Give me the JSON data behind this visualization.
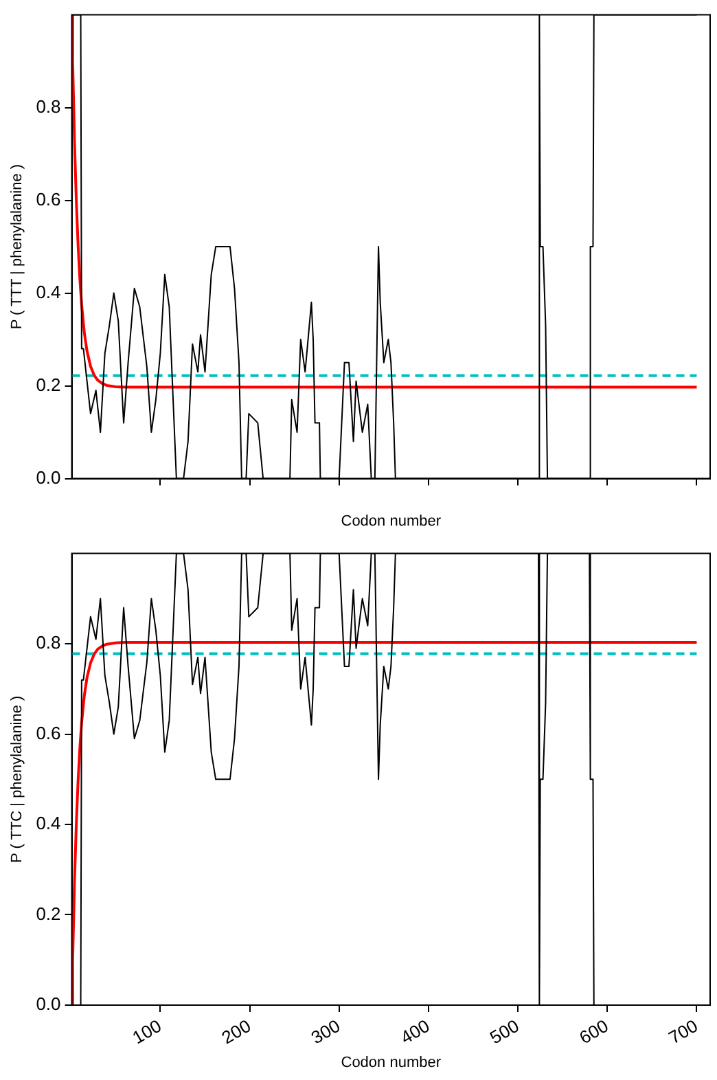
{
  "chart_data": [
    {
      "type": "line",
      "xlabel": "Codon number",
      "ylabel": "P ( TTT | phenylalanine )",
      "xlim": [
        1,
        715
      ],
      "ylim": [
        0,
        1
      ],
      "xticks": [
        100,
        200,
        300,
        400,
        500,
        600,
        700
      ],
      "yticks": [
        {
          "value": 0,
          "label": "0.0"
        },
        0.2,
        0.4,
        0.6,
        0.8
      ],
      "tick_labels": "y",
      "marker": "none",
      "series": [
        {
          "color": "#000000",
          "x": [
            1,
            11,
            12,
            14,
            22,
            28,
            33,
            38,
            43,
            48,
            53,
            59,
            64,
            71,
            77,
            85,
            90,
            95,
            100,
            105,
            110,
            118,
            126,
            131,
            136,
            142,
            145,
            150,
            157,
            162,
            178,
            183,
            188,
            191,
            196,
            199,
            209,
            215,
            245,
            247,
            253,
            257,
            262,
            269,
            271,
            273,
            278,
            279,
            300,
            306,
            311,
            316,
            319,
            326,
            332,
            336,
            340,
            344,
            346,
            350,
            355,
            358,
            361,
            363,
            523,
            524,
            525,
            528,
            531,
            533,
            580,
            581,
            584,
            585,
            700
          ],
          "values": [
            1,
            1,
            0.28,
            0.28,
            0.14,
            0.19,
            0.1,
            0.27,
            0.33,
            0.4,
            0.34,
            0.12,
            0.25,
            0.41,
            0.37,
            0.24,
            0.1,
            0.17,
            0.27,
            0.44,
            0.37,
            0,
            0,
            0.08,
            0.29,
            0.23,
            0.31,
            0.23,
            0.44,
            0.5,
            0.5,
            0.41,
            0.25,
            0,
            0,
            0.14,
            0.12,
            0,
            0,
            0.17,
            0.1,
            0.3,
            0.23,
            0.38,
            0.3,
            0.12,
            0.12,
            0,
            0,
            0.25,
            0.25,
            0.08,
            0.21,
            0.1,
            0.16,
            0,
            0,
            0.5,
            0.38,
            0.25,
            0.3,
            0.25,
            0.12,
            0,
            0,
            1,
            0.5,
            0.5,
            0.33,
            0,
            0,
            0.5,
            0.5,
            1,
            1
          ]
        },
        {
          "color": "#ff0000",
          "x": [
            1,
            2,
            4,
            6,
            8,
            10,
            12,
            15,
            18,
            22,
            26,
            30,
            35,
            40,
            50,
            60,
            700
          ],
          "values": [
            1,
            0.897,
            0.729,
            0.602,
            0.505,
            0.431,
            0.375,
            0.315,
            0.275,
            0.242,
            0.223,
            0.212,
            0.205,
            0.201,
            0.198,
            0.197,
            0.197
          ]
        },
        {
          "color": "#00bfbf",
          "line_style": "dashed",
          "x": [
            1,
            700
          ],
          "values": [
            0.222,
            0.222
          ]
        }
      ]
    },
    {
      "type": "line",
      "xlabel": "Codon number",
      "ylabel": "P ( TTC | phenylalanine )",
      "xlim": [
        1,
        715
      ],
      "ylim": [
        0,
        1
      ],
      "xticks": [
        100,
        200,
        300,
        400,
        500,
        600,
        700
      ],
      "yticks": [
        {
          "value": 0,
          "label": "0.0"
        },
        0.2,
        0.4,
        0.6,
        0.8
      ],
      "marker": "none",
      "series": [
        {
          "color": "#000000",
          "x": [
            1,
            11,
            12,
            14,
            22,
            28,
            33,
            38,
            43,
            48,
            53,
            59,
            64,
            71,
            77,
            85,
            90,
            95,
            100,
            105,
            110,
            118,
            126,
            131,
            136,
            142,
            145,
            150,
            157,
            162,
            178,
            183,
            188,
            191,
            196,
            199,
            209,
            215,
            245,
            247,
            253,
            257,
            262,
            269,
            271,
            273,
            278,
            279,
            300,
            306,
            311,
            316,
            319,
            326,
            332,
            336,
            340,
            344,
            346,
            350,
            355,
            358,
            361,
            363,
            523,
            524,
            525,
            528,
            531,
            533,
            580,
            581,
            584,
            585,
            700
          ],
          "values": [
            0,
            0,
            0.72,
            0.72,
            0.86,
            0.81,
            0.9,
            0.73,
            0.67,
            0.6,
            0.66,
            0.88,
            0.75,
            0.59,
            0.63,
            0.76,
            0.9,
            0.83,
            0.73,
            0.56,
            0.63,
            1,
            1,
            0.92,
            0.71,
            0.77,
            0.69,
            0.77,
            0.56,
            0.5,
            0.5,
            0.59,
            0.75,
            1,
            1,
            0.86,
            0.88,
            1,
            1,
            0.83,
            0.9,
            0.7,
            0.77,
            0.62,
            0.7,
            0.88,
            0.88,
            1,
            1,
            0.75,
            0.75,
            0.92,
            0.79,
            0.9,
            0.84,
            1,
            1,
            0.5,
            0.62,
            0.75,
            0.7,
            0.75,
            0.88,
            1,
            1,
            0,
            0.5,
            0.5,
            0.67,
            1,
            1,
            0.5,
            0.5,
            0,
            0
          ]
        },
        {
          "color": "#ff0000",
          "x": [
            1,
            2,
            4,
            6,
            8,
            10,
            12,
            15,
            18,
            22,
            26,
            30,
            35,
            40,
            50,
            60,
            700
          ],
          "values": [
            0,
            0.103,
            0.271,
            0.398,
            0.495,
            0.569,
            0.625,
            0.685,
            0.725,
            0.758,
            0.777,
            0.788,
            0.795,
            0.799,
            0.802,
            0.803,
            0.803
          ]
        },
        {
          "color": "#00bfbf",
          "line_style": "dashed",
          "x": [
            1,
            700
          ],
          "values": [
            0.778,
            0.778
          ]
        }
      ]
    }
  ]
}
